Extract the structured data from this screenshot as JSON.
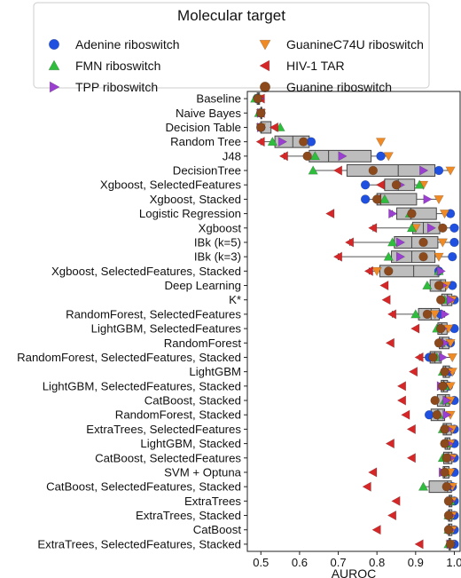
{
  "chart_data": {
    "type": "box",
    "xlabel": "AUROC",
    "xlim": [
      0.465,
      1.015
    ],
    "xticks": [
      "0.5",
      "0.6",
      "0.7",
      "0.8",
      "0.9",
      "1.0"
    ],
    "legend": {
      "title": "Molecular target",
      "placement": "top",
      "columns": 2
    },
    "series": [
      {
        "name": "Adenine riboswitch",
        "marker": "circle",
        "color": "#1f50e0"
      },
      {
        "name": "GuanineC74U riboswitch",
        "marker": "triangle-down",
        "color": "#f08a24"
      },
      {
        "name": "FMN riboswitch",
        "marker": "triangle-up",
        "color": "#2ebd3c"
      },
      {
        "name": "HIV-1 TAR",
        "marker": "triangle-left",
        "color": "#d62728"
      },
      {
        "name": "TPP riboswitch",
        "marker": "triangle-right",
        "color": "#9a3fd0"
      },
      {
        "name": "Guanine riboswitch",
        "marker": "circle",
        "color": "#8c4a1c"
      }
    ],
    "categories": [
      "Baseline",
      "Naive Bayes",
      "Decision Table",
      "Random Tree",
      "J48",
      "DecisionTree",
      "Xgboost, SelectedFeatures",
      "Xgboost, Stacked",
      "Logistic Regression",
      "Xgboost",
      "IBk (k=5)",
      "IBk (k=3)",
      "Xgboost, SelectedFeatures, Stacked",
      "Deep Learning",
      "K*",
      "RandomForest, SelectedFeatures",
      "LightGBM, SelectedFeatures",
      "RandomForest",
      "RandomForest, SelectedFeatures, Stacked",
      "LightGBM",
      "LightGBM, SelectedFeatures, Stacked",
      "CatBoost, Stacked",
      "RandomForest, Stacked",
      "ExtraTrees, SelectedFeatures",
      "LightGBM, Stacked",
      "CatBoost, SelectedFeatures",
      "SVM + Optuna",
      "CatBoost, SelectedFeatures, Stacked",
      "ExtraTrees",
      "ExtraTrees, Stacked",
      "CatBoost",
      "ExtraTrees, SelectedFeatures, Stacked"
    ],
    "values": [
      [
        0.49,
        0.495,
        0.485,
        0.5,
        0.497,
        0.492
      ],
      [
        0.5,
        0.5,
        0.495,
        0.5,
        0.5,
        0.5
      ],
      [
        0.5,
        0.5,
        0.55,
        0.535,
        0.5,
        0.5
      ],
      [
        0.63,
        0.81,
        0.53,
        0.5,
        0.555,
        0.61
      ],
      [
        0.81,
        0.83,
        0.64,
        0.56,
        0.71,
        0.62
      ],
      [
        0.96,
        0.99,
        0.635,
        0.7,
        0.92,
        0.79
      ],
      [
        0.77,
        0.92,
        0.91,
        0.81,
        0.86,
        0.85
      ],
      [
        0.77,
        0.96,
        0.82,
        0.8,
        0.93,
        0.8
      ],
      [
        0.99,
        0.975,
        0.885,
        0.68,
        0.84,
        0.89
      ],
      [
        1.0,
        0.9,
        0.89,
        0.79,
        0.94,
        0.97
      ],
      [
        1.0,
        0.97,
        0.84,
        0.73,
        0.86,
        0.92
      ],
      [
        0.995,
        0.96,
        0.83,
        0.7,
        0.86,
        0.92
      ],
      [
        0.96,
        0.8,
        0.96,
        0.78,
        0.965,
        0.83
      ],
      [
        0.995,
        0.98,
        0.93,
        0.82,
        0.97,
        0.96
      ],
      [
        1.0,
        0.995,
        0.975,
        0.825,
        0.99,
        0.965
      ],
      [
        0.965,
        0.95,
        0.9,
        0.84,
        0.975,
        0.93
      ],
      [
        1.0,
        0.985,
        0.955,
        0.9,
        0.97,
        0.965
      ],
      [
        0.99,
        0.99,
        0.965,
        0.835,
        0.975,
        0.96
      ],
      [
        0.935,
        0.995,
        0.955,
        0.91,
        0.97,
        0.945
      ],
      [
        0.99,
        0.995,
        0.97,
        0.895,
        0.98,
        0.975
      ],
      [
        0.985,
        0.99,
        0.975,
        0.865,
        0.965,
        0.97
      ],
      [
        1.0,
        0.99,
        0.975,
        0.865,
        0.98,
        0.95
      ],
      [
        0.935,
        0.99,
        0.96,
        0.875,
        0.98,
        0.955
      ],
      [
        1.0,
        0.995,
        0.97,
        0.89,
        0.985,
        0.975
      ],
      [
        1.0,
        0.99,
        0.98,
        0.835,
        0.985,
        0.975
      ],
      [
        1.0,
        0.995,
        0.97,
        0.89,
        0.99,
        0.98
      ],
      [
        1.0,
        0.99,
        0.975,
        0.79,
        0.97,
        0.975
      ],
      [
        0.995,
        0.995,
        0.92,
        0.775,
        0.985,
        0.98
      ],
      [
        1.0,
        0.995,
        0.99,
        0.85,
        0.99,
        0.985
      ],
      [
        1.0,
        0.995,
        0.985,
        0.84,
        0.99,
        0.985
      ],
      [
        1.0,
        0.995,
        0.985,
        0.8,
        0.99,
        0.985
      ],
      [
        1.0,
        0.99,
        0.985,
        0.91,
        0.99,
        0.99
      ]
    ]
  }
}
